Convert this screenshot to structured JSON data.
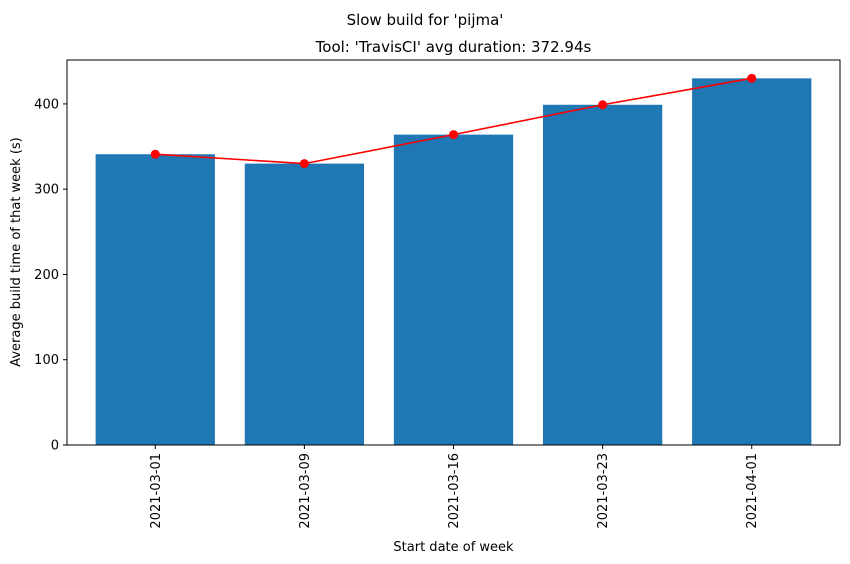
{
  "chart_data": {
    "type": "bar",
    "suptitle": "Slow build for 'pijma'",
    "title": "Tool: 'TravisCI' avg duration: 372.94s",
    "xlabel": "Start date of week",
    "ylabel": "Average build time of that week (s)",
    "categories": [
      "2021-03-01",
      "2021-03-09",
      "2021-03-16",
      "2021-03-23",
      "2021-04-01"
    ],
    "series": [
      {
        "type": "bar",
        "values": [
          341,
          330,
          364,
          399,
          430
        ],
        "color": "#1f77b4"
      },
      {
        "type": "line",
        "marker": "circle",
        "values": [
          341,
          330,
          364,
          399,
          430
        ],
        "color": "#ff0000"
      }
    ],
    "ylim": [
      0,
      451.5
    ],
    "yticks": [
      0,
      100,
      200,
      300,
      400
    ],
    "grid": false,
    "xtick_rotation": 90
  }
}
